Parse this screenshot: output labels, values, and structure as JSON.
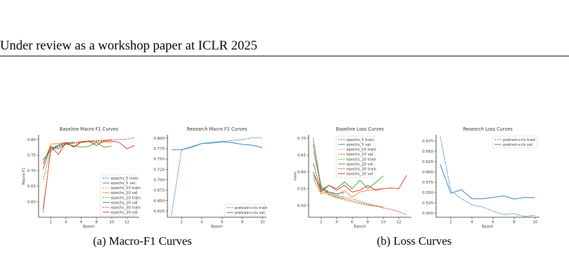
{
  "header": {
    "text": "Under review as a workshop paper at ICLR 2025"
  },
  "captions": {
    "a": "(a) Macro-F1 Curves",
    "b": "(b) Loss Curves"
  },
  "colors": {
    "blue": "#1f77b4",
    "orange": "#ff7f0e",
    "green": "#2ca02c",
    "red": "#d62728"
  },
  "chart_data": [
    {
      "type": "line",
      "title": "Baseline Macro F1 Curves",
      "xlabel": "Epoch",
      "ylabel": "Macro F1",
      "xlim": [
        0.4,
        13.6
      ],
      "ylim": [
        0.55,
        0.815
      ],
      "xticks": [
        2,
        4,
        6,
        8,
        10,
        12
      ],
      "yticks": [
        0.6,
        0.65,
        0.7,
        0.75,
        0.8
      ],
      "ytick_labels": [
        "0.60",
        "0.65",
        "0.70",
        "0.75",
        "0.80"
      ],
      "legend": "lower-right",
      "grid": false,
      "series": [
        {
          "name": "epochs_5 train",
          "color": "#1f77b4",
          "dashed": true,
          "x": [
            1,
            2,
            3,
            4,
            5
          ],
          "y": [
            0.565,
            0.772,
            0.782,
            0.788,
            0.792
          ]
        },
        {
          "name": "epochs_5 val",
          "color": "#1f77b4",
          "dashed": false,
          "x": [
            1,
            2,
            3,
            4,
            5
          ],
          "y": [
            0.735,
            0.765,
            0.782,
            0.79,
            0.787
          ]
        },
        {
          "name": "epochs_10 train",
          "color": "#ff7f0e",
          "dashed": true,
          "x": [
            1,
            2,
            3,
            4,
            5,
            6,
            7,
            8,
            9,
            10
          ],
          "y": [
            0.58,
            0.76,
            0.78,
            0.787,
            0.79,
            0.793,
            0.795,
            0.797,
            0.798,
            0.8
          ]
        },
        {
          "name": "epochs_10 val",
          "color": "#ff7f0e",
          "dashed": false,
          "x": [
            1,
            2,
            3,
            4,
            5,
            6,
            7,
            8,
            9,
            10
          ],
          "y": [
            0.72,
            0.785,
            0.787,
            0.79,
            0.775,
            0.79,
            0.795,
            0.79,
            0.792,
            0.79
          ]
        },
        {
          "name": "epochs_20 train",
          "color": "#2ca02c",
          "dashed": true,
          "x": [
            1,
            2,
            3,
            4,
            5,
            6,
            7,
            8,
            9,
            10
          ],
          "y": [
            0.67,
            0.765,
            0.776,
            0.784,
            0.788,
            0.79,
            0.792,
            0.794,
            0.795,
            0.796
          ]
        },
        {
          "name": "epochs_20 val",
          "color": "#2ca02c",
          "dashed": false,
          "x": [
            1,
            2,
            3,
            4,
            5,
            6,
            7,
            8,
            9,
            10
          ],
          "y": [
            0.725,
            0.775,
            0.77,
            0.785,
            0.78,
            0.775,
            0.778,
            0.79,
            0.775,
            0.778
          ]
        },
        {
          "name": "epochs_30 train",
          "color": "#d62728",
          "dashed": true,
          "x": [
            1,
            2,
            3,
            4,
            5,
            6,
            7,
            8,
            9,
            10,
            11,
            12,
            13
          ],
          "y": [
            0.575,
            0.768,
            0.778,
            0.785,
            0.789,
            0.792,
            0.794,
            0.796,
            0.797,
            0.799,
            0.8,
            0.801,
            0.805
          ]
        },
        {
          "name": "epochs_30 val",
          "color": "#d62728",
          "dashed": false,
          "x": [
            1,
            2,
            3,
            4,
            5,
            6,
            7,
            8,
            9,
            10,
            11,
            12,
            13
          ],
          "y": [
            0.705,
            0.778,
            0.752,
            0.79,
            0.776,
            0.793,
            0.795,
            0.78,
            0.795,
            0.795,
            0.79,
            0.77,
            0.78
          ]
        }
      ]
    },
    {
      "type": "line",
      "title": "Research Macro F1 Curves",
      "xlabel": "Epoch",
      "ylabel": "",
      "xlim": [
        0.6,
        10.4
      ],
      "ylim": [
        0.61,
        0.808
      ],
      "xticks": [
        2,
        4,
        6,
        8,
        10
      ],
      "yticks": [
        0.625,
        0.65,
        0.675,
        0.7,
        0.725,
        0.75,
        0.775,
        0.8
      ],
      "ytick_labels": [
        "0.625",
        "0.650",
        "0.675",
        "0.700",
        "0.725",
        "0.750",
        "0.775",
        "0.800"
      ],
      "legend": "lower-right",
      "grid": false,
      "series": [
        {
          "name": "pretrain+cls train",
          "color": "#1f77b4",
          "dashed": true,
          "x": [
            1,
            2,
            3,
            4,
            5,
            6,
            7,
            8,
            9,
            10
          ],
          "y": [
            0.615,
            0.772,
            0.78,
            0.787,
            0.79,
            0.792,
            0.794,
            0.796,
            0.801,
            0.8
          ]
        },
        {
          "name": "pretrain+cls val",
          "color": "#1f77b4",
          "dashed": false,
          "x": [
            1,
            2,
            3,
            4,
            5,
            6,
            7,
            8,
            9,
            10
          ],
          "y": [
            0.772,
            0.772,
            0.778,
            0.787,
            0.788,
            0.791,
            0.789,
            0.785,
            0.783,
            0.777
          ]
        }
      ]
    },
    {
      "type": "line",
      "title": "Baseline Loss Curves",
      "xlabel": "Epoch",
      "ylabel": "Loss",
      "xlim": [
        0.4,
        13.6
      ],
      "ylim": [
        0.465,
        0.71
      ],
      "xticks": [
        2,
        4,
        6,
        8,
        10,
        12
      ],
      "yticks": [
        0.5,
        0.55,
        0.6,
        0.65,
        0.7
      ],
      "ytick_labels": [
        "0.50",
        "0.55",
        "0.60",
        "0.65",
        "0.70"
      ],
      "legend": "upper-right",
      "grid": false,
      "series": [
        {
          "name": "epochs_5 train",
          "color": "#1f77b4",
          "dashed": true,
          "x": [
            1,
            2,
            3,
            4,
            5
          ],
          "y": [
            0.7,
            0.555,
            0.533,
            0.525,
            0.52
          ]
        },
        {
          "name": "epochs_5 val",
          "color": "#1f77b4",
          "dashed": false,
          "x": [
            1,
            2,
            3,
            4,
            5
          ],
          "y": [
            0.59,
            0.55,
            0.54,
            0.535,
            0.538
          ]
        },
        {
          "name": "epochs_10 train",
          "color": "#ff7f0e",
          "dashed": true,
          "x": [
            1,
            2,
            3,
            4,
            5,
            6,
            7,
            8,
            9,
            10
          ],
          "y": [
            0.69,
            0.545,
            0.53,
            0.522,
            0.516,
            0.51,
            0.505,
            0.5,
            0.498,
            0.495
          ]
        },
        {
          "name": "epochs_10 val",
          "color": "#ff7f0e",
          "dashed": false,
          "x": [
            1,
            2,
            3,
            4,
            5,
            6,
            7,
            8,
            9,
            10
          ],
          "y": [
            0.58,
            0.535,
            0.54,
            0.53,
            0.545,
            0.525,
            0.54,
            0.545,
            0.548,
            0.55
          ]
        },
        {
          "name": "epochs_20 train",
          "color": "#2ca02c",
          "dashed": true,
          "x": [
            1,
            2,
            3,
            4,
            5,
            6,
            7,
            8,
            9,
            10
          ],
          "y": [
            0.66,
            0.56,
            0.54,
            0.53,
            0.525,
            0.52,
            0.513,
            0.505,
            0.5,
            0.495
          ]
        },
        {
          "name": "epochs_20 val",
          "color": "#2ca02c",
          "dashed": false,
          "x": [
            1,
            2,
            3,
            4,
            5,
            6,
            7,
            8,
            9,
            10
          ],
          "y": [
            0.625,
            0.545,
            0.56,
            0.55,
            0.57,
            0.55,
            0.575,
            0.55,
            0.568,
            0.588
          ]
        },
        {
          "name": "epochs_30 train",
          "color": "#d62728",
          "dashed": true,
          "x": [
            1,
            2,
            3,
            4,
            5,
            6,
            7,
            8,
            9,
            10,
            11,
            12,
            13
          ],
          "y": [
            0.68,
            0.552,
            0.535,
            0.526,
            0.52,
            0.514,
            0.508,
            0.503,
            0.498,
            0.493,
            0.488,
            0.482,
            0.472
          ]
        },
        {
          "name": "epochs_30 val",
          "color": "#d62728",
          "dashed": false,
          "x": [
            1,
            2,
            3,
            4,
            5,
            6,
            7,
            8,
            9,
            10,
            11,
            12,
            13
          ],
          "y": [
            0.6,
            0.54,
            0.56,
            0.545,
            0.56,
            0.54,
            0.545,
            0.56,
            0.545,
            0.55,
            0.552,
            0.55,
            0.59
          ]
        }
      ]
    },
    {
      "type": "line",
      "title": "Research Loss Curves",
      "xlabel": "Epoch",
      "ylabel": "",
      "xlim": [
        0.6,
        10.4
      ],
      "ylim": [
        0.49,
        0.69
      ],
      "xticks": [
        2,
        4,
        6,
        8,
        10
      ],
      "yticks": [
        0.5,
        0.525,
        0.55,
        0.575,
        0.6,
        0.625,
        0.65,
        0.675
      ],
      "ytick_labels": [
        "0.500",
        "0.525",
        "0.550",
        "0.575",
        "0.600",
        "0.625",
        "0.650",
        "0.675"
      ],
      "legend": "upper-right",
      "grid": false,
      "series": [
        {
          "name": "pretrain+cls train",
          "color": "#1f77b4",
          "dashed": true,
          "x": [
            1,
            2,
            3,
            4,
            5,
            6,
            7,
            8,
            9,
            10
          ],
          "y": [
            0.685,
            0.555,
            0.535,
            0.52,
            0.515,
            0.505,
            0.497,
            0.499,
            0.492,
            0.495
          ]
        },
        {
          "name": "pretrain+cls val",
          "color": "#1f77b4",
          "dashed": false,
          "x": [
            1,
            2,
            3,
            4,
            5,
            6,
            7,
            8,
            9,
            10
          ],
          "y": [
            0.618,
            0.548,
            0.557,
            0.535,
            0.535,
            0.538,
            0.542,
            0.534,
            0.538,
            0.537
          ]
        }
      ]
    }
  ]
}
